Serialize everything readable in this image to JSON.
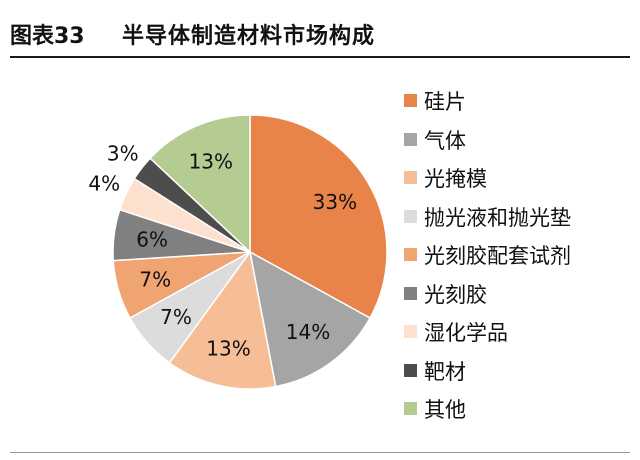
{
  "header": {
    "figure_label": "图表33",
    "title": "半导体制造材料市场构成"
  },
  "chart_data": {
    "type": "pie",
    "categories": [
      "硅片",
      "气体",
      "光掩模",
      "抛光液和抛光垫",
      "光刻胶配套试剂",
      "光刻胶",
      "湿化学品",
      "靶材",
      "其他"
    ],
    "values": [
      33,
      14,
      13,
      7,
      7,
      6,
      4,
      3,
      13
    ],
    "data_labels": [
      "33%",
      "14%",
      "13%",
      "7%",
      "7%",
      "6%",
      "4%",
      "3%",
      "13%"
    ],
    "colors": [
      "#E8834A",
      "#A5A5A5",
      "#F5BE96",
      "#DCDCDC",
      "#F0A472",
      "#808080",
      "#FCE1CE",
      "#4D4D4D",
      "#B4CB92"
    ],
    "legend_position": "right",
    "start_angle": "12 o'clock",
    "direction": "clockwise"
  }
}
